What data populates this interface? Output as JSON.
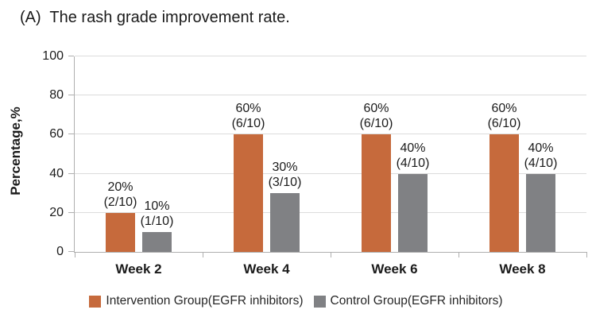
{
  "figure": {
    "title": "(A)  The rash grade improvement rate."
  },
  "chart_data": {
    "type": "bar",
    "title": "(A)  The rash grade improvement rate.",
    "xlabel": "",
    "ylabel": "Percentage,%",
    "categories": [
      "Week 2",
      "Week 4",
      "Week 6",
      "Week 8"
    ],
    "series": [
      {
        "name": "Intervention Group(EGFR inhibitors)",
        "color": "#c66a3c",
        "values": [
          20,
          60,
          60,
          60
        ],
        "point_labels": [
          [
            "20%",
            "(2/10)"
          ],
          [
            "60%",
            "(6/10)"
          ],
          [
            "60%",
            "(6/10)"
          ],
          [
            "60%",
            "(6/10)"
          ]
        ]
      },
      {
        "name": "Control Group(EGFR inhibitors)",
        "color": "#808184",
        "values": [
          10,
          30,
          40,
          40
        ],
        "point_labels": [
          [
            "10%",
            "(1/10)"
          ],
          [
            "30%",
            "(3/10)"
          ],
          [
            "40%",
            "(4/10)"
          ],
          [
            "40%",
            "(4/10)"
          ]
        ]
      }
    ],
    "ylim": [
      0,
      100
    ],
    "yticks": [
      0,
      20,
      40,
      60,
      80,
      100
    ],
    "grid": true,
    "legend_position": "bottom",
    "colors": {
      "gridline": "#dcdcdc",
      "axis": "#afafaf",
      "text": "#1b1b1b"
    }
  }
}
